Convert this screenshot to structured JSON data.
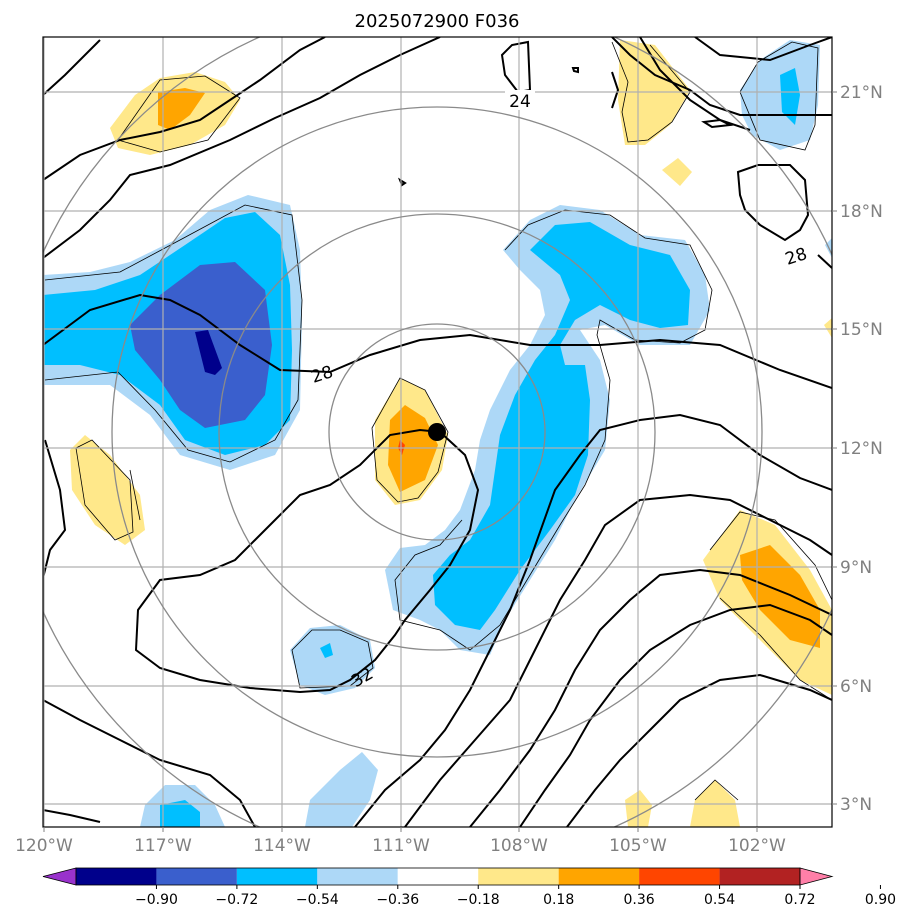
{
  "title": "2025072900 F036",
  "lon_ticks": [
    "120°W",
    "117°W",
    "114°W",
    "111°W",
    "108°W",
    "105°W",
    "102°W"
  ],
  "lat_ticks": [
    "21°N",
    "18°N",
    "15°N",
    "12°N",
    "9°N",
    "6°N",
    "3°N"
  ],
  "contour_labels": [
    "24",
    "28",
    "28",
    "32"
  ],
  "colorbar": {
    "levels": [
      "−0.90",
      "−0.72",
      "−0.54",
      "−0.36",
      "−0.18",
      "0.18",
      "0.36",
      "0.54",
      "0.72",
      "0.90"
    ],
    "colors": [
      "#9932cc",
      "#00008b",
      "#3a5fcd",
      "#00bfff",
      "#add8f7",
      "#ffffff",
      "#ffe88a",
      "#ffa500",
      "#ff4500",
      "#b22222",
      "#ff7fa8"
    ]
  },
  "storm_marker": {
    "lon": "110.2°W",
    "lat": "12.4°N"
  }
}
